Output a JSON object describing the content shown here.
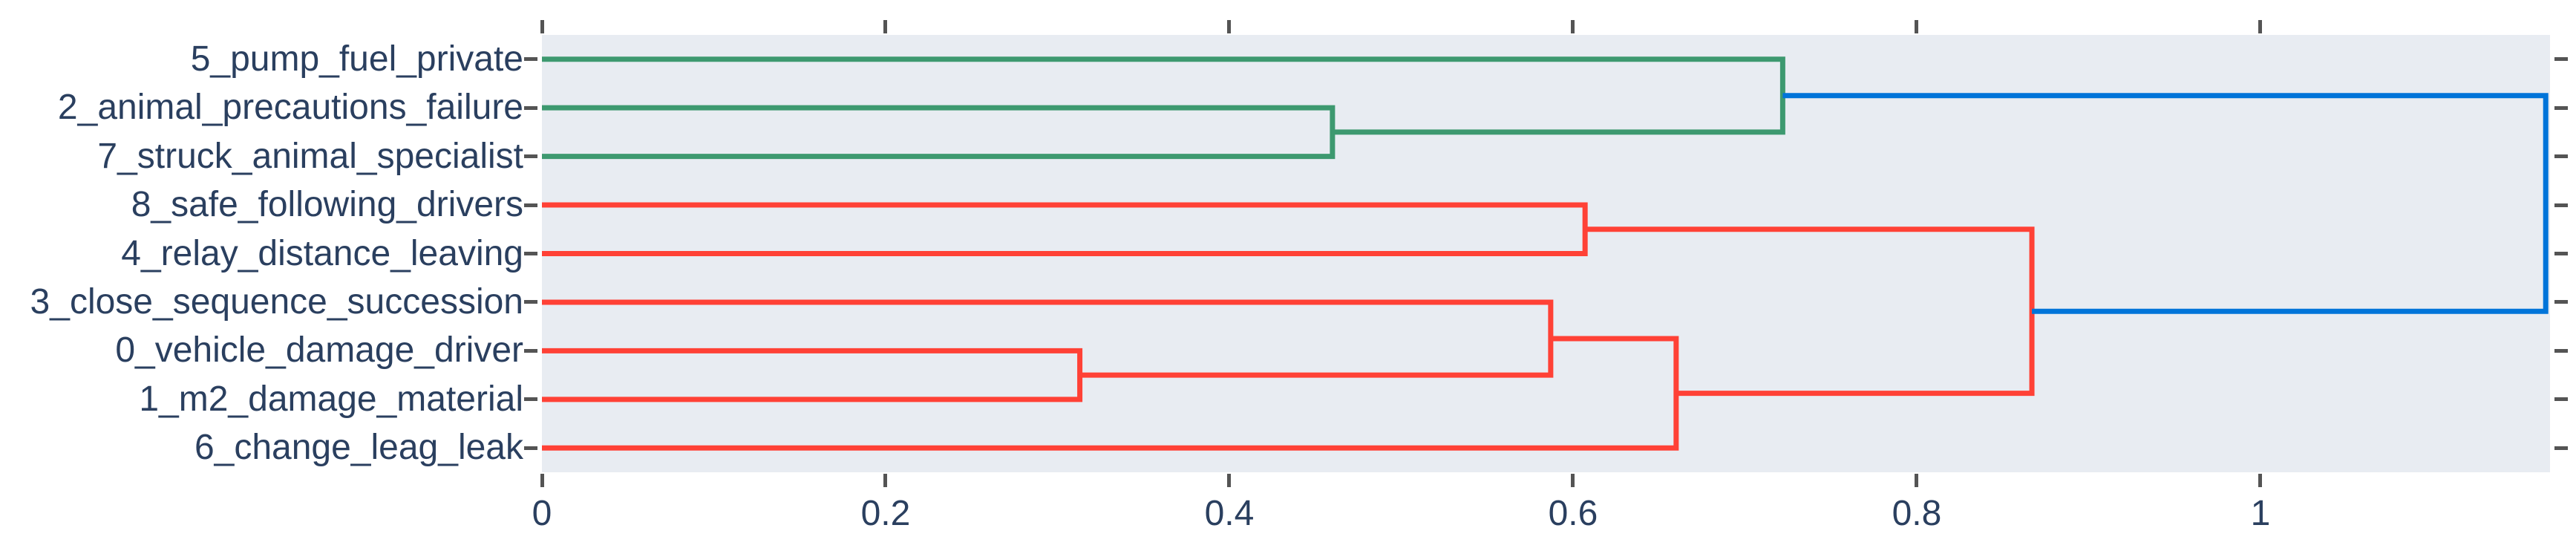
{
  "chart_data": {
    "type": "dendrogram",
    "title": "",
    "xlabel": "",
    "ylabel": "",
    "orientation": "horizontal-left-labels",
    "labels": [
      "5_pump_fuel_private",
      "2_animal_precautions_failure",
      "7_struck_animal_specialist",
      "8_safe_following_drivers",
      "4_relay_distance_leaving",
      "3_close_sequence_succession",
      "0_vehicle_damage_driver",
      "1_m2_damage_material",
      "6_change_leag_leak"
    ],
    "x_axis": {
      "lim": [
        0,
        1.1685
      ],
      "ticks": [
        {
          "v": 0,
          "label": "0"
        },
        {
          "v": 0.2,
          "label": "0.2"
        },
        {
          "v": 0.4,
          "label": "0.4"
        },
        {
          "v": 0.6,
          "label": "0.6"
        },
        {
          "v": 0.8,
          "label": "0.8"
        },
        {
          "v": 1,
          "label": "1"
        }
      ],
      "mirrored_ticks": true,
      "grid": false
    },
    "merges": [
      {
        "color": "green",
        "x": 0.46,
        "children": [
          {
            "x": 0,
            "y": 1
          },
          {
            "x": 0,
            "y": 2
          }
        ],
        "note": "2_animal + 7_struck"
      },
      {
        "color": "green",
        "x": 0.722,
        "children": [
          {
            "x": 0,
            "y": 0
          },
          {
            "x": 0.46,
            "y": 1.5
          }
        ],
        "note": "5_pump + (2,7)"
      },
      {
        "color": "red",
        "x": 0.607,
        "children": [
          {
            "x": 0,
            "y": 3
          },
          {
            "x": 0,
            "y": 4
          }
        ],
        "note": "8_safe + 4_relay"
      },
      {
        "color": "red",
        "x": 0.313,
        "children": [
          {
            "x": 0,
            "y": 6
          },
          {
            "x": 0,
            "y": 7
          }
        ],
        "note": "0_vehicle + 1_m2"
      },
      {
        "color": "red",
        "x": 0.587,
        "children": [
          {
            "x": 0,
            "y": 5
          },
          {
            "x": 0.313,
            "y": 6.5
          }
        ],
        "note": "3_close + (0,1)"
      },
      {
        "color": "red",
        "x": 0.66,
        "children": [
          {
            "x": 0.587,
            "y": 5.75
          },
          {
            "x": 0,
            "y": 8
          }
        ],
        "note": "(3,0,1) + 6_change"
      },
      {
        "color": "red",
        "x": 0.867,
        "children": [
          {
            "x": 0.607,
            "y": 3.5
          },
          {
            "x": 0.66,
            "y": 6.875
          }
        ],
        "note": "(8,4) + (3,0,1,6)"
      },
      {
        "color": "blue",
        "x": 1.166,
        "children": [
          {
            "x": 0.722,
            "y": 0.75
          },
          {
            "x": 0.867,
            "y": 5.1875
          }
        ],
        "note": "root: green + red"
      }
    ],
    "colors": {
      "green": "#3D9970",
      "red": "#FF4136",
      "blue": "#0074D9",
      "plot_bg": "#E8ECF2",
      "text": "#2a3f5f",
      "tick": "#545454"
    },
    "line_width": 7
  }
}
